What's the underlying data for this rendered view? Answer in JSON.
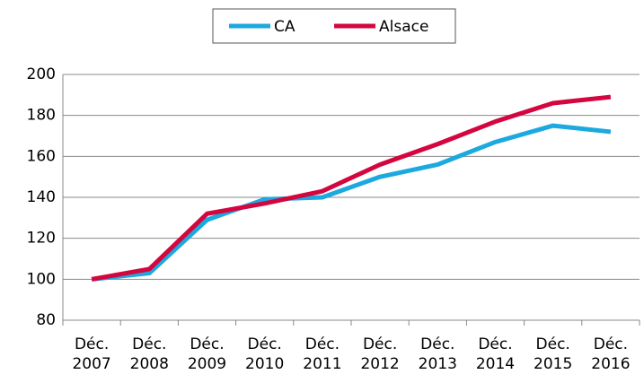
{
  "chart_data": {
    "type": "line",
    "categories": [
      "Déc. 2007",
      "Déc. 2008",
      "Déc. 2009",
      "Déc. 2010",
      "Déc. 2011",
      "Déc. 2012",
      "Déc. 2013",
      "Déc. 2014",
      "Déc. 2015",
      "Déc. 2016"
    ],
    "series": [
      {
        "name": "CA",
        "color": "#1ba9df",
        "values": [
          100,
          103,
          129,
          139,
          140,
          150,
          156,
          167,
          175,
          172
        ]
      },
      {
        "name": "Alsace",
        "color": "#d4063f",
        "values": [
          100,
          105,
          132,
          137,
          143,
          156,
          166,
          177,
          186,
          189
        ]
      }
    ],
    "ylim": [
      80,
      200
    ],
    "yticks": [
      80,
      100,
      120,
      140,
      160,
      180,
      200
    ],
    "grid": true,
    "legend": "top"
  }
}
